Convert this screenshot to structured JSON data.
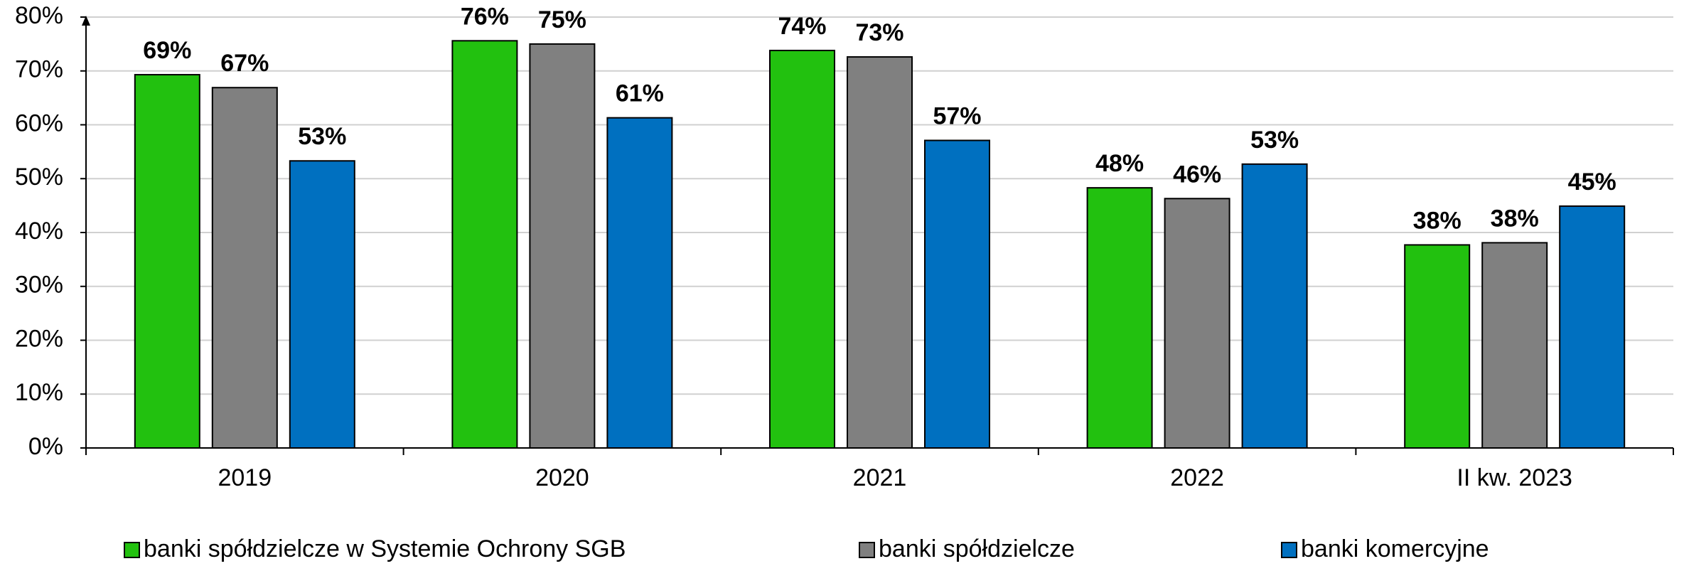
{
  "chart_data": {
    "type": "bar",
    "categories": [
      "2019",
      "2020",
      "2021",
      "2022",
      "II kw. 2023"
    ],
    "series": [
      {
        "name": "banki spółdzielcze w Systemie Ochrony SGB",
        "color": "#22c10f",
        "values": [
          69.3,
          75.6,
          73.8,
          48.3,
          37.7
        ],
        "value_labels": [
          "69%",
          "76%",
          "74%",
          "48%",
          "38%"
        ]
      },
      {
        "name": "banki spółdzielcze",
        "color": "#808080",
        "values": [
          66.9,
          75.0,
          72.6,
          46.3,
          38.1
        ],
        "value_labels": [
          "67%",
          "75%",
          "73%",
          "46%",
          "38%"
        ]
      },
      {
        "name": "banki komercyjne",
        "color": "#0070c0",
        "values": [
          53.3,
          61.3,
          57.1,
          52.7,
          44.9
        ],
        "value_labels": [
          "53%",
          "61%",
          "57%",
          "53%",
          "45%"
        ]
      }
    ],
    "ylim": [
      0,
      80
    ],
    "yticks": [
      {
        "value": 0,
        "label": "0%"
      },
      {
        "value": 10,
        "label": "10%"
      },
      {
        "value": 20,
        "label": "20%"
      },
      {
        "value": 30,
        "label": "30%"
      },
      {
        "value": 40,
        "label": "40%"
      },
      {
        "value": 50,
        "label": "50%"
      },
      {
        "value": 60,
        "label": "60%"
      },
      {
        "value": 70,
        "label": "70%"
      },
      {
        "value": 80,
        "label": "80%"
      }
    ],
    "grid": true,
    "legend": "bottom"
  }
}
